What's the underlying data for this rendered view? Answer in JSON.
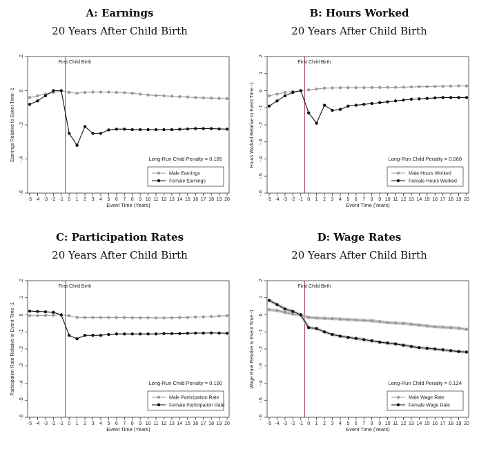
{
  "chart_data": [
    {
      "type": "line",
      "title": "A: Earnings",
      "subtitle": "20 Years After Child Birth",
      "xlabel": "Event Time (Years)",
      "ylabel": "Earnings Relative to Event Time -1",
      "x": [
        -5,
        -4,
        -3,
        -2,
        -1,
        0,
        1,
        2,
        3,
        4,
        5,
        6,
        7,
        8,
        9,
        10,
        11,
        12,
        13,
        14,
        15,
        16,
        17,
        18,
        19,
        20
      ],
      "ylim": [
        -0.6,
        0.2
      ],
      "yticks": [
        0.2,
        0,
        -0.2,
        -0.4,
        -0.6
      ],
      "ytick_labels": [
        ".2",
        "0",
        "-.2",
        "-.4",
        "-.6"
      ],
      "xtick_labels": [
        "-5",
        "-4",
        "-3",
        "-2",
        "-1",
        "0",
        "1",
        "2",
        "3",
        "4",
        "5",
        "6",
        "7",
        "8",
        "9",
        "10",
        "11",
        "12",
        "13",
        "14",
        "15",
        "16",
        "17",
        "18",
        "19",
        "20"
      ],
      "vline_label": "First Child Birth",
      "penalty_text": "Long-Run Child Penalty = 0.185",
      "series": [
        {
          "name": "Male Earnings",
          "color": "#999999",
          "values": [
            -0.04,
            -0.03,
            -0.02,
            -0.01,
            0.0,
            -0.01,
            -0.015,
            -0.01,
            -0.008,
            -0.008,
            -0.008,
            -0.01,
            -0.012,
            -0.015,
            -0.02,
            -0.025,
            -0.028,
            -0.03,
            -0.032,
            -0.035,
            -0.037,
            -0.04,
            -0.042,
            -0.043,
            -0.045,
            -0.046
          ]
        },
        {
          "name": "Female Earnings",
          "color": "#111111",
          "values": [
            -0.08,
            -0.06,
            -0.03,
            0.0,
            0.0,
            -0.25,
            -0.32,
            -0.21,
            -0.25,
            -0.25,
            -0.23,
            -0.225,
            -0.225,
            -0.228,
            -0.228,
            -0.228,
            -0.228,
            -0.228,
            -0.228,
            -0.226,
            -0.224,
            -0.222,
            -0.222,
            -0.222,
            -0.224,
            -0.225
          ]
        }
      ]
    },
    {
      "type": "line",
      "title": "B: Hours Worked",
      "subtitle": "20 Years After Child Birth",
      "xlabel": "Event Time (Years)",
      "ylabel": "Hours Worked Relative to Event Time -1",
      "x": [
        -5,
        -4,
        -3,
        -2,
        -1,
        0,
        1,
        2,
        3,
        4,
        5,
        6,
        7,
        8,
        9,
        10,
        11,
        12,
        13,
        14,
        15,
        16,
        17,
        18,
        19,
        20
      ],
      "ylim": [
        -0.6,
        0.2
      ],
      "yticks": [
        0.2,
        0.1,
        0,
        -0.1,
        -0.2,
        -0.3,
        -0.4,
        -0.5,
        -0.6
      ],
      "ytick_labels": [
        ".2",
        ".1",
        "0",
        "-.1",
        "-.2",
        "-.3",
        "-.4",
        "-.5",
        "-.6"
      ],
      "xtick_labels": [
        "-5",
        "-4",
        "-3",
        "-2",
        "-1",
        "0",
        "1",
        "2",
        "3",
        "4",
        "5",
        "6",
        "7",
        "8",
        "9",
        "10",
        "11",
        "12",
        "13",
        "14",
        "15",
        "16",
        "17",
        "18",
        "19",
        "20"
      ],
      "vline_label": "First Child Birth",
      "penalty_text": "Long-Run Child Penalty = 0.068",
      "series": [
        {
          "name": "Male Hours Worked",
          "color": "#999999",
          "values": [
            -0.03,
            -0.02,
            -0.01,
            -0.005,
            0.0,
            0.005,
            0.01,
            0.015,
            0.016,
            0.017,
            0.018,
            0.018,
            0.018,
            0.019,
            0.019,
            0.02,
            0.02,
            0.021,
            0.022,
            0.023,
            0.024,
            0.025,
            0.026,
            0.027,
            0.028,
            0.028
          ]
        },
        {
          "name": "Female Hours Worked",
          "color": "#111111",
          "values": [
            -0.09,
            -0.06,
            -0.03,
            -0.01,
            0.0,
            -0.13,
            -0.19,
            -0.085,
            -0.115,
            -0.11,
            -0.09,
            -0.085,
            -0.08,
            -0.075,
            -0.07,
            -0.065,
            -0.06,
            -0.055,
            -0.05,
            -0.048,
            -0.045,
            -0.042,
            -0.04,
            -0.04,
            -0.04,
            -0.04
          ]
        }
      ]
    },
    {
      "type": "line",
      "title": "C: Participation Rates",
      "subtitle": "20 Years After Child Birth",
      "xlabel": "Event Time (Years)",
      "ylabel": "Participation Rate Relative to Event Time -1",
      "x": [
        -5,
        -4,
        -3,
        -2,
        -1,
        0,
        1,
        2,
        3,
        4,
        5,
        6,
        7,
        8,
        9,
        10,
        11,
        12,
        13,
        14,
        15,
        16,
        17,
        18,
        19,
        20
      ],
      "ylim": [
        -0.6,
        0.2
      ],
      "yticks": [
        0.2,
        0.1,
        0,
        -0.1,
        -0.2,
        -0.3,
        -0.4,
        -0.5,
        -0.6
      ],
      "ytick_labels": [
        ".2",
        ".1",
        "0",
        "-.1",
        "-.2",
        "-.3",
        "-.4",
        "-.5",
        "-.6"
      ],
      "xtick_labels": [
        "-5",
        "-4",
        "-3",
        "-2",
        "-1",
        "0",
        "1",
        "2",
        "3",
        "4",
        "5",
        "6",
        "7",
        "8",
        "9",
        "10",
        "11",
        "12",
        "13",
        "14",
        "15",
        "16",
        "17",
        "18",
        "19",
        "20"
      ],
      "vline_label": "First Child Birth",
      "penalty_text": "Long-Run Child Penalty = 0.100",
      "series": [
        {
          "name": "Male Participation Rate",
          "color": "#999999",
          "values": [
            -0.005,
            -0.005,
            -0.003,
            -0.003,
            0.0,
            -0.005,
            -0.015,
            -0.016,
            -0.016,
            -0.016,
            -0.016,
            -0.016,
            -0.016,
            -0.017,
            -0.017,
            -0.017,
            -0.018,
            -0.018,
            -0.017,
            -0.016,
            -0.015,
            -0.013,
            -0.012,
            -0.01,
            -0.007,
            -0.005
          ]
        },
        {
          "name": "Female Participation Rate",
          "color": "#111111",
          "values": [
            0.022,
            0.02,
            0.018,
            0.015,
            0.0,
            -0.12,
            -0.14,
            -0.12,
            -0.12,
            -0.12,
            -0.115,
            -0.112,
            -0.112,
            -0.112,
            -0.112,
            -0.112,
            -0.112,
            -0.11,
            -0.11,
            -0.11,
            -0.108,
            -0.107,
            -0.107,
            -0.106,
            -0.107,
            -0.108
          ]
        }
      ]
    },
    {
      "type": "line",
      "title": "D: Wage Rates",
      "subtitle": "20 Years After Child Birth",
      "xlabel": "Event Time (Years)",
      "ylabel": "Wage Rate Relative to Event Time -1",
      "x": [
        -5,
        -4,
        -3,
        -2,
        -1,
        0,
        1,
        2,
        3,
        4,
        5,
        6,
        7,
        8,
        9,
        10,
        11,
        12,
        13,
        14,
        15,
        16,
        17,
        18,
        19,
        20
      ],
      "ylim": [
        -0.6,
        0.2
      ],
      "yticks": [
        0.2,
        0.1,
        0,
        -0.1,
        -0.2,
        -0.3,
        -0.4,
        -0.5,
        -0.6
      ],
      "ytick_labels": [
        ".2",
        ".1",
        "0",
        "-.1",
        "-.2",
        "-.3",
        "-.4",
        "-.5",
        "-.6"
      ],
      "xtick_labels": [
        "-5",
        "-4",
        "-3",
        "-2",
        "-1",
        "0",
        "1",
        "2",
        "3",
        "4",
        "5",
        "6",
        "7",
        "8",
        "9",
        "10",
        "11",
        "12",
        "13",
        "14",
        "15",
        "16",
        "17",
        "18",
        "19",
        "20"
      ],
      "vline_label": "First Child Birth",
      "penalty_text": "Long-Run Child Penalty = 0.124",
      "series": [
        {
          "name": "Male Wage Rate",
          "color": "#999999",
          "values": [
            0.03,
            0.025,
            0.015,
            0.005,
            0.0,
            -0.015,
            -0.018,
            -0.02,
            -0.022,
            -0.025,
            -0.028,
            -0.03,
            -0.032,
            -0.035,
            -0.04,
            -0.045,
            -0.048,
            -0.05,
            -0.055,
            -0.06,
            -0.065,
            -0.07,
            -0.072,
            -0.075,
            -0.078,
            -0.085
          ]
        },
        {
          "name": "Female Wage Rate",
          "color": "#111111",
          "values": [
            0.085,
            0.06,
            0.035,
            0.02,
            0.0,
            -0.075,
            -0.08,
            -0.1,
            -0.115,
            -0.125,
            -0.132,
            -0.138,
            -0.145,
            -0.152,
            -0.16,
            -0.165,
            -0.17,
            -0.178,
            -0.185,
            -0.192,
            -0.196,
            -0.2,
            -0.205,
            -0.21,
            -0.215,
            -0.218
          ]
        }
      ]
    }
  ]
}
